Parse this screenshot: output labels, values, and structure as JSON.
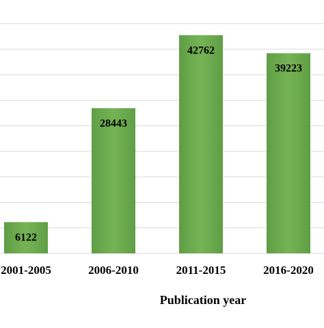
{
  "chart_data": {
    "type": "bar",
    "categories": [
      "2001-2005",
      "2006-2010",
      "2011-2015",
      "2016-2020"
    ],
    "values": [
      6122,
      28443,
      42762,
      39223
    ],
    "data_labels": [
      "6122",
      "28443",
      "42762",
      "39223"
    ],
    "title": "",
    "xlabel": "Publication year",
    "ylabel": "",
    "ylim": [
      0,
      45000
    ],
    "grid": true,
    "bar_color": "#6aa84f",
    "bar_highlight": "#7dbb5e",
    "grid_color": "#d9d9d9"
  }
}
